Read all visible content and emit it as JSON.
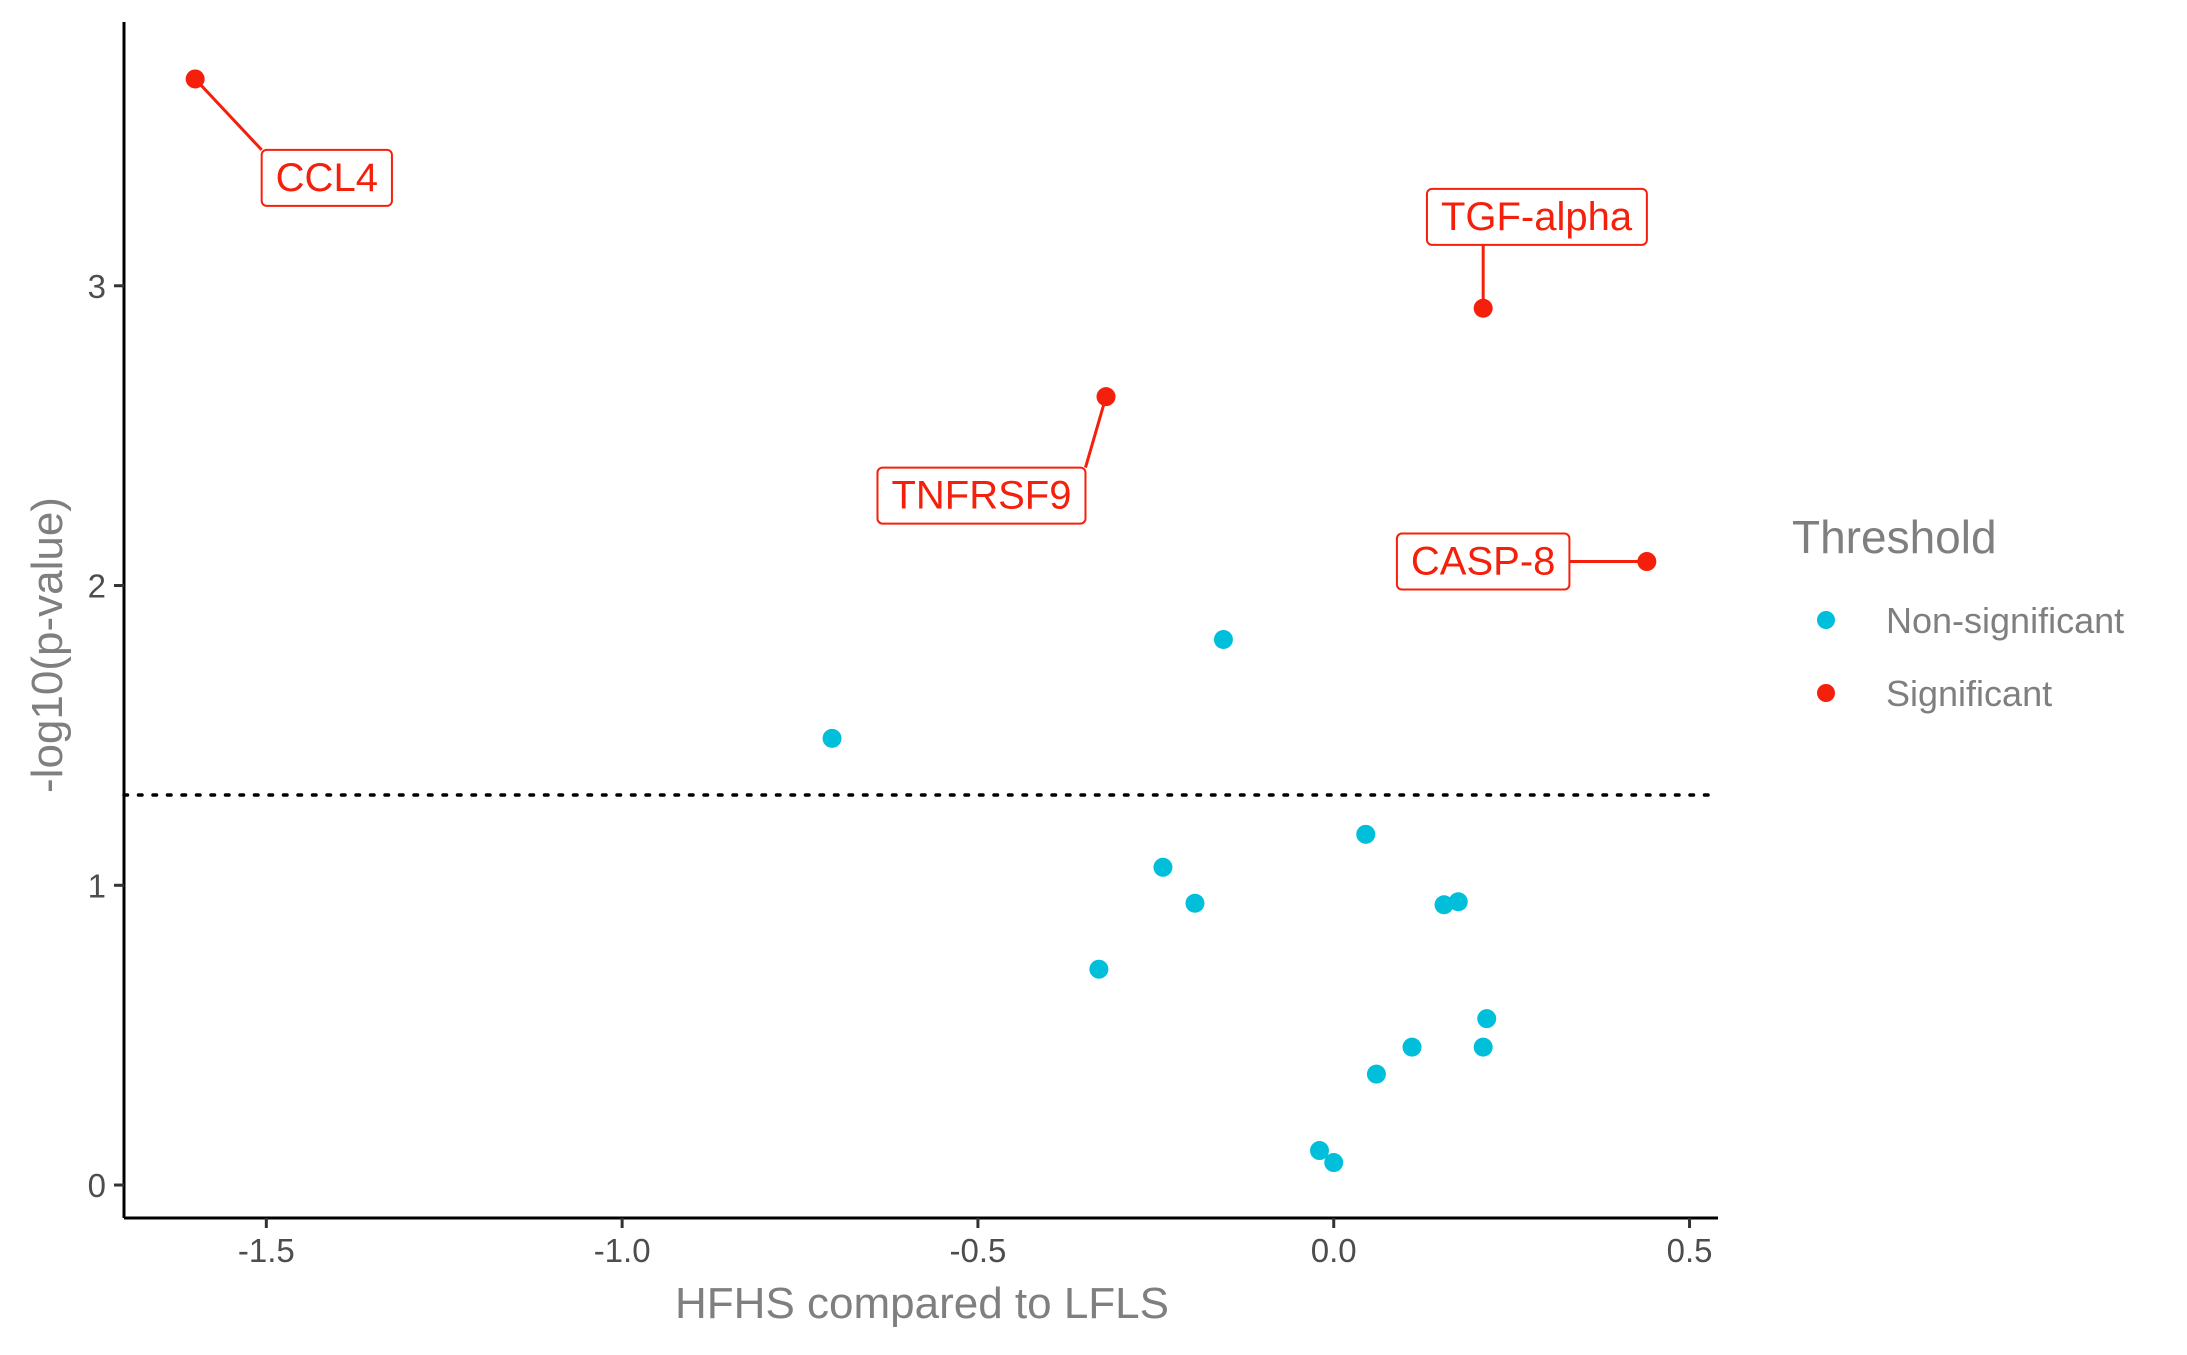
{
  "chart_data": {
    "type": "scatter",
    "title": "",
    "xlabel": "HFHS compared to LFLS",
    "ylabel": "-log10(p-value)",
    "xlim": [
      -1.7,
      0.54
    ],
    "ylim": [
      -0.11,
      3.88
    ],
    "x_ticks": [
      -1.5,
      -1.0,
      -0.5,
      0.0,
      0.5
    ],
    "x_tick_labels": [
      "-1.5",
      "-1.0",
      "-0.5",
      "0.0",
      "0.5"
    ],
    "y_ticks": [
      0,
      1,
      2,
      3
    ],
    "y_tick_labels": [
      "0",
      "1",
      "2",
      "3"
    ],
    "threshold_line": {
      "y": 1.301,
      "style": "dotted"
    },
    "grid": false,
    "legend": {
      "title": "Threshold",
      "position": "right",
      "entries": [
        {
          "label": "Non-significant",
          "color": "#00BFDB"
        },
        {
          "label": "Significant",
          "color": "#F4200C"
        }
      ]
    },
    "series": [
      {
        "name": "Non-significant",
        "color": "#00BFDB",
        "points": [
          {
            "x": -0.705,
            "y": 1.49
          },
          {
            "x": -0.155,
            "y": 1.82
          },
          {
            "x": -0.24,
            "y": 1.06
          },
          {
            "x": -0.195,
            "y": 0.94
          },
          {
            "x": -0.33,
            "y": 0.72
          },
          {
            "x": 0.045,
            "y": 1.17
          },
          {
            "x": 0.155,
            "y": 0.935
          },
          {
            "x": 0.175,
            "y": 0.945
          },
          {
            "x": 0.215,
            "y": 0.555
          },
          {
            "x": 0.21,
            "y": 0.46
          },
          {
            "x": 0.11,
            "y": 0.46
          },
          {
            "x": 0.06,
            "y": 0.37
          },
          {
            "x": -0.02,
            "y": 0.115
          },
          {
            "x": 0.0,
            "y": 0.075
          }
        ]
      },
      {
        "name": "Significant",
        "color": "#F4200C",
        "points": [
          {
            "x": -1.6,
            "y": 3.69,
            "label": "CCL4",
            "label_x": -1.415,
            "label_y": 3.36
          },
          {
            "x": 0.21,
            "y": 2.925,
            "label": "TGF-alpha",
            "label_x": 0.285,
            "label_y": 3.23
          },
          {
            "x": -0.32,
            "y": 2.63,
            "label": "TNFRSF9",
            "label_x": -0.495,
            "label_y": 2.3
          },
          {
            "x": 0.44,
            "y": 2.08,
            "label": "CASP-8",
            "label_x": 0.21,
            "label_y": 2.08
          }
        ]
      }
    ]
  }
}
